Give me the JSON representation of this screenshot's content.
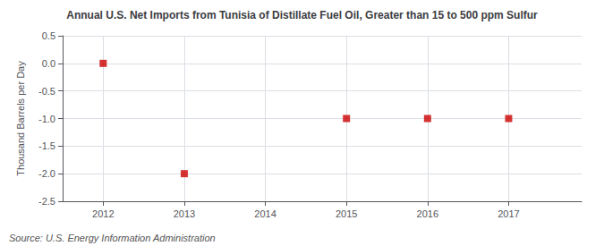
{
  "chart_data": {
    "type": "scatter",
    "title": "Annual U.S. Net Imports from Tunisia of Distillate Fuel Oil, Greater than 15 to 500 ppm Sulfur",
    "ylabel": "Thousand Barrels per Day",
    "annotations": [
      "Source: U.S. Energy Information Administration"
    ],
    "x": [
      2012,
      2013,
      2015,
      2016,
      2017
    ],
    "values": [
      0,
      -2,
      -1,
      -1,
      -1
    ],
    "color": "#cc0000",
    "marker": "square",
    "xlim": [
      2011.5,
      2017.9
    ],
    "xticks": [
      2012,
      2013,
      2014,
      2015,
      2016,
      2017
    ],
    "ylim": [
      -2.5,
      0.5
    ],
    "yticks": [
      0.5,
      {
        "value": 0.0,
        "label": "0.0"
      },
      -0.5,
      {
        "value": -1.0,
        "label": "-1.0"
      },
      -1.5,
      {
        "value": -2.0,
        "label": "-2.0"
      },
      -2.5
    ],
    "grid": true
  }
}
